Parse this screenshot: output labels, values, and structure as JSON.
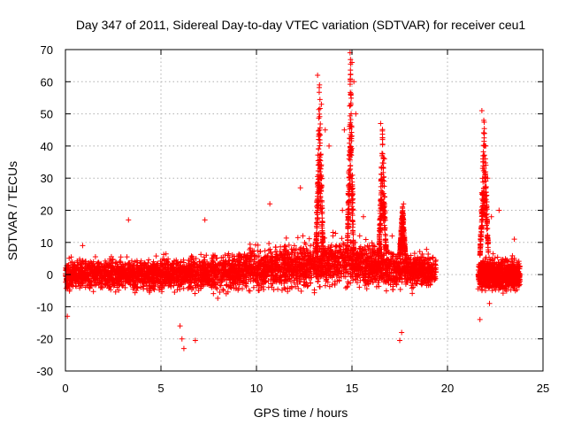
{
  "chart_data": {
    "type": "scatter",
    "title": "Day 347 of 2011, Sidereal Day-to-day VTEC variation (SDTVAR) for receiver ceu1",
    "xlabel": "GPS time / hours",
    "ylabel": "SDTVAR / TECUs",
    "xlim": [
      0,
      25
    ],
    "ylim": [
      -30,
      70
    ],
    "xticks": [
      0,
      5,
      10,
      15,
      20,
      25
    ],
    "yticks": [
      -30,
      -20,
      -10,
      0,
      10,
      20,
      30,
      40,
      50,
      60,
      70
    ],
    "grid": true,
    "legend": "none",
    "marker": "+",
    "color": "#ff0000",
    "series": [
      {
        "name": "SDTVAR",
        "base_band": [
          {
            "x": 0,
            "center": 0,
            "spread": 4
          },
          {
            "x": 5,
            "center": 0,
            "spread": 4
          },
          {
            "x": 9,
            "center": 1,
            "spread": 5
          },
          {
            "x": 12,
            "center": 3,
            "spread": 6
          },
          {
            "x": 14.5,
            "center": 4,
            "spread": 6
          },
          {
            "x": 17,
            "center": 2,
            "spread": 5
          },
          {
            "x": 19.4,
            "center": 1,
            "spread": 4
          }
        ],
        "base_band_2": [
          {
            "x": 21.6,
            "center": 0,
            "spread": 4
          },
          {
            "x": 23.8,
            "center": 0,
            "spread": 4
          }
        ],
        "notable_points": [
          [
            0.1,
            -13
          ],
          [
            0.9,
            9
          ],
          [
            3.3,
            17
          ],
          [
            6.0,
            -16
          ],
          [
            6.1,
            -20
          ],
          [
            6.2,
            -23
          ],
          [
            6.8,
            -20.5
          ],
          [
            7.3,
            17
          ],
          [
            10.7,
            22
          ],
          [
            12.3,
            27
          ],
          [
            13.2,
            62
          ],
          [
            13.3,
            59
          ],
          [
            13.4,
            53
          ],
          [
            13.6,
            45
          ],
          [
            13.8,
            40
          ],
          [
            14.5,
            20
          ],
          [
            14.6,
            45
          ],
          [
            14.9,
            69
          ],
          [
            15.0,
            66
          ],
          [
            15.1,
            60
          ],
          [
            15.2,
            50
          ],
          [
            15.6,
            18
          ],
          [
            16.5,
            47
          ],
          [
            16.6,
            42
          ],
          [
            16.7,
            36
          ],
          [
            17.1,
            12
          ],
          [
            17.5,
            -20.5
          ],
          [
            17.6,
            -18
          ],
          [
            17.7,
            22
          ],
          [
            21.8,
            51
          ],
          [
            21.9,
            48
          ],
          [
            22.0,
            40
          ],
          [
            22.1,
            30
          ],
          [
            22.3,
            18
          ],
          [
            22.7,
            20
          ],
          [
            23.5,
            11
          ],
          [
            21.7,
            -14
          ],
          [
            22.2,
            -9
          ]
        ],
        "spikes": [
          {
            "x_from": 13.1,
            "x_to": 13.5,
            "peak": 62
          },
          {
            "x_from": 14.75,
            "x_to": 15.1,
            "peak": 69
          },
          {
            "x_from": 16.4,
            "x_to": 16.8,
            "peak": 47
          },
          {
            "x_from": 17.5,
            "x_to": 17.8,
            "peak": 22
          },
          {
            "x_from": 21.7,
            "x_to": 22.15,
            "peak": 51
          }
        ]
      }
    ]
  }
}
